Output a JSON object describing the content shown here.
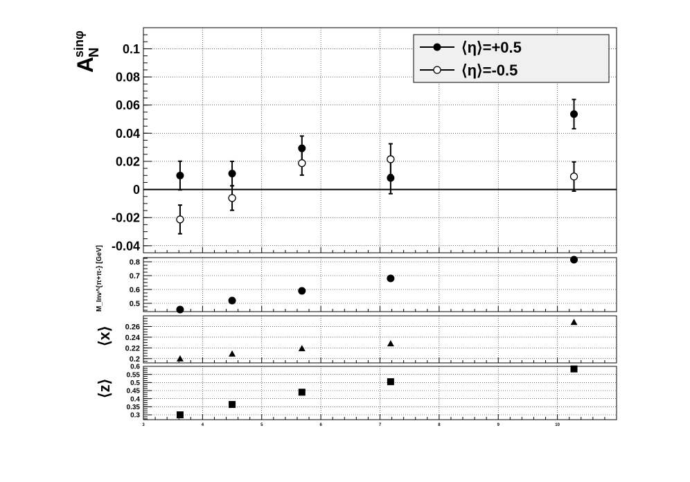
{
  "chart_data": [
    {
      "type": "scatter",
      "panel": "asymmetry",
      "ylabel_main": "A",
      "ylabel_sub": "N",
      "ylabel_sup": "sinφ",
      "xlim": [
        3,
        11
      ],
      "ylim": [
        -0.045,
        0.115
      ],
      "yticks": [
        -0.04,
        -0.02,
        0,
        0.02,
        0.04,
        0.06,
        0.08,
        0.1
      ],
      "ytick_labels": [
        "-0.04",
        "-0.02",
        "0",
        "0.02",
        "0.04",
        "0.06",
        "0.08",
        "0.1"
      ],
      "grid": true,
      "legend_position": "top-right",
      "series": [
        {
          "name": "⟨η⟩=+0.5",
          "marker": "filled-circle",
          "x": [
            3.62,
            4.5,
            5.68,
            7.18,
            10.28
          ],
          "y": [
            0.0099,
            0.0113,
            0.0293,
            0.0082,
            0.0536
          ],
          "err": [
            0.0102,
            0.0087,
            0.0087,
            0.0112,
            0.0104
          ]
        },
        {
          "name": "⟨η⟩=-0.5",
          "marker": "open-circle",
          "x": [
            3.62,
            4.5,
            5.68,
            7.18,
            10.28
          ],
          "y": [
            -0.0213,
            -0.0061,
            0.0187,
            0.0215,
            0.0092
          ],
          "err": [
            0.0102,
            0.0087,
            0.0085,
            0.011,
            0.0104
          ]
        }
      ]
    },
    {
      "type": "scatter",
      "panel": "mass",
      "ylabel": "M_Inv^{π+π-} [GeV]",
      "xlim": [
        3,
        11
      ],
      "ylim": [
        0.44,
        0.83
      ],
      "yticks": [
        0.5,
        0.6,
        0.7,
        0.8
      ],
      "ytick_labels": [
        "0.5",
        "0.6",
        "0.7",
        "0.8"
      ],
      "marker": "filled-circle",
      "x": [
        3.62,
        4.5,
        5.68,
        7.18,
        10.28
      ],
      "y": [
        0.455,
        0.52,
        0.59,
        0.68,
        0.815
      ]
    },
    {
      "type": "scatter",
      "panel": "x",
      "ylabel": "⟨x⟩",
      "xlim": [
        3,
        11
      ],
      "ylim": [
        0.192,
        0.28
      ],
      "yticks": [
        0.2,
        0.22,
        0.24,
        0.26
      ],
      "ytick_labels": [
        "0.2",
        "0.22",
        "0.24",
        "0.26"
      ],
      "marker": "filled-triangle",
      "x": [
        3.62,
        4.5,
        5.68,
        7.18,
        10.28
      ],
      "y": [
        0.2,
        0.209,
        0.219,
        0.228,
        0.268
      ]
    },
    {
      "type": "scatter",
      "panel": "z",
      "ylabel": "⟨z⟩",
      "xlim": [
        3,
        11
      ],
      "ylim": [
        0.27,
        0.6
      ],
      "yticks": [
        0.3,
        0.35,
        0.4,
        0.45,
        0.5,
        0.55,
        0.6
      ],
      "ytick_labels": [
        "0.3",
        "0.35",
        "0.4",
        "0.45",
        "0.5",
        "0.55",
        "0.6"
      ],
      "xticks": [
        3,
        4,
        5,
        6,
        7,
        8,
        9,
        10
      ],
      "xtick_labels": [
        "3",
        "4",
        "5",
        "6",
        "7",
        "8",
        "9",
        "10"
      ],
      "marker": "filled-square",
      "x": [
        3.62,
        4.5,
        5.68,
        7.18,
        10.28
      ],
      "y": [
        0.3,
        0.364,
        0.44,
        0.505,
        0.584
      ]
    }
  ]
}
